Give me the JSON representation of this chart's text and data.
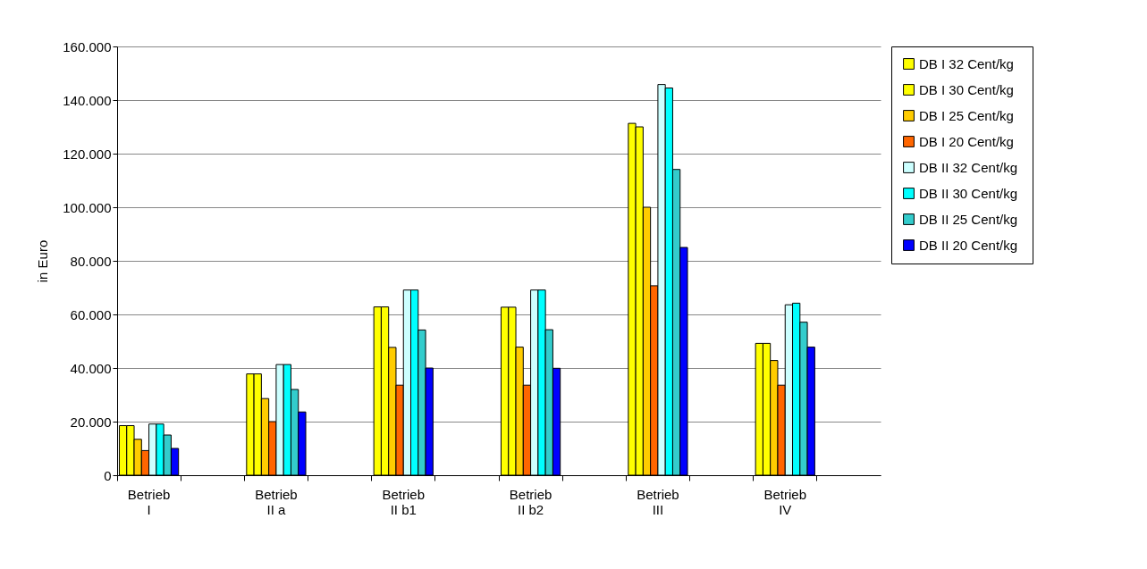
{
  "chart_data": {
    "type": "bar",
    "ylabel": "in Euro",
    "categories": [
      "Betrieb I",
      null,
      "Betrieb II a",
      null,
      "Betrieb II b1",
      null,
      "Betrieb II b2",
      null,
      "Betrieb III",
      null,
      "Betrieb IV",
      null
    ],
    "series": [
      {
        "name": "DB I  32 Cent/kg",
        "color": "#ffff00",
        "values": [
          18500,
          null,
          37800,
          null,
          62800,
          null,
          62700,
          null,
          131300,
          null,
          49200,
          null
        ]
      },
      {
        "name": "DB I  30 Cent/kg",
        "color": "#ffff00",
        "values": [
          18500,
          null,
          37800,
          null,
          62800,
          null,
          62700,
          null,
          130000,
          null,
          49200,
          null
        ]
      },
      {
        "name": "DB I  25 Cent/kg",
        "color": "#ffcc00",
        "values": [
          13400,
          null,
          28600,
          null,
          47700,
          null,
          47800,
          null,
          100000,
          null,
          42800,
          null
        ]
      },
      {
        "name": "DB I  20 Cent/kg",
        "color": "#ff6600",
        "values": [
          9200,
          null,
          20000,
          null,
          33600,
          null,
          33600,
          null,
          70700,
          null,
          33600,
          null
        ]
      },
      {
        "name": "DB II  32 Cent/kg",
        "color": "#ccffff",
        "values": [
          19100,
          null,
          41300,
          null,
          69100,
          null,
          69100,
          null,
          145800,
          null,
          63600,
          null
        ]
      },
      {
        "name": "DB II  30 Cent/kg",
        "color": "#00ffff",
        "values": [
          19100,
          null,
          41300,
          null,
          69100,
          null,
          69100,
          null,
          144500,
          null,
          64200,
          null
        ]
      },
      {
        "name": "DB II  25 Cent/kg",
        "color": "#33cccc",
        "values": [
          15000,
          null,
          32000,
          null,
          54200,
          null,
          54300,
          null,
          114100,
          null,
          57100,
          null
        ]
      },
      {
        "name": "DB II  20 Cent/kg",
        "color": "#0000ff",
        "values": [
          10000,
          null,
          23600,
          null,
          40000,
          null,
          39900,
          null,
          85000,
          null,
          47800,
          null
        ]
      }
    ],
    "ylim": [
      0,
      160000
    ],
    "yticks": [
      {
        "value": 0,
        "label": "0"
      },
      {
        "value": 20000,
        "label": "20.000"
      },
      {
        "value": 40000,
        "label": "40.000"
      },
      {
        "value": 60000,
        "label": "60.000"
      },
      {
        "value": 80000,
        "label": "80.000"
      },
      {
        "value": 100000,
        "label": "100.000"
      },
      {
        "value": 120000,
        "label": "120.000"
      },
      {
        "value": 140000,
        "label": "140.000"
      },
      {
        "value": 160000,
        "label": "160.000"
      }
    ],
    "grid": "y",
    "legend": "right"
  }
}
